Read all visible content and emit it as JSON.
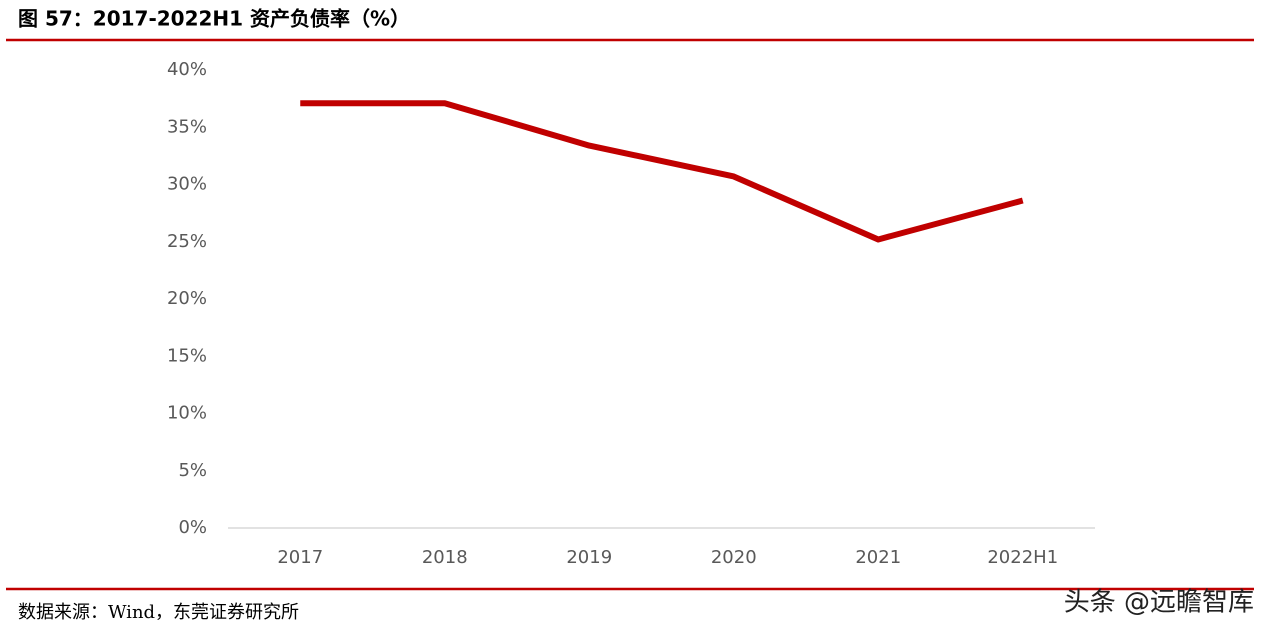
{
  "chart_data": {
    "type": "line",
    "title": "图 57：2017-2022H1 资产负债率（%）",
    "source": "数据来源：Wind，东莞证券研究所",
    "watermark": "头条 @远瞻智库",
    "categories": [
      "2017",
      "2018",
      "2019",
      "2020",
      "2021",
      "2022H1"
    ],
    "values": [
      37.1,
      37.1,
      33.4,
      30.7,
      25.2,
      28.6
    ],
    "color": "#c00000",
    "ylim": [
      0,
      40
    ],
    "yticks": [
      {
        "value": 0,
        "label": "0%"
      },
      {
        "value": 5,
        "label": "5%"
      },
      {
        "value": 10,
        "label": "10%"
      },
      {
        "value": 15,
        "label": "15%"
      },
      {
        "value": 20,
        "label": "20%"
      },
      {
        "value": 25,
        "label": "25%"
      },
      {
        "value": 30,
        "label": "30%"
      },
      {
        "value": 35,
        "label": "35%"
      },
      {
        "value": 40,
        "label": "40%"
      }
    ],
    "grid": false
  }
}
